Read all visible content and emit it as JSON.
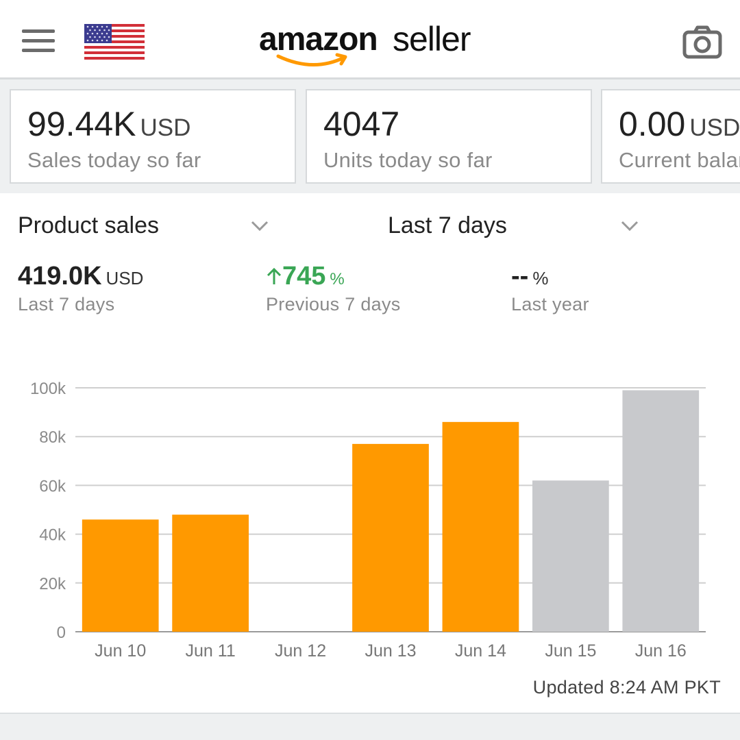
{
  "header": {
    "logo_word1": "amazon",
    "logo_word2": "seller",
    "icons": {
      "menu": "hamburger-menu-icon",
      "flag": "us-flag-icon",
      "camera": "camera-icon"
    }
  },
  "stats": [
    {
      "value": "99.44K",
      "unit": "USD",
      "label": "Sales today so far"
    },
    {
      "value": "4047",
      "unit": "",
      "label": "Units today so far"
    },
    {
      "value": "0.00",
      "unit": "USD",
      "label": "Current balance"
    }
  ],
  "filters": {
    "metric_select": "Product sales",
    "period_select": "Last 7 days"
  },
  "summary": [
    {
      "value": "419.0K",
      "unit": "USD",
      "label": "Last 7 days"
    },
    {
      "value": "745",
      "unit": "%",
      "label": "Previous 7 days",
      "trend": "up"
    },
    {
      "value": "--",
      "unit": "%",
      "label": "Last year"
    }
  ],
  "chart_data": {
    "type": "bar",
    "categories": [
      "Jun 10",
      "Jun 11",
      "Jun 12",
      "Jun 13",
      "Jun 14",
      "Jun 15",
      "Jun 16"
    ],
    "values": [
      46000,
      48000,
      0,
      77000,
      86000,
      62000,
      99000
    ],
    "bar_colors": [
      "#ff9900",
      "#ff9900",
      "#ff9900",
      "#ff9900",
      "#ff9900",
      "#c8c9cc",
      "#c8c9cc"
    ],
    "ylim": [
      0,
      100000
    ],
    "yticks": [
      0,
      20000,
      40000,
      60000,
      80000,
      100000
    ],
    "ytick_labels": [
      "0",
      "20k",
      "40k",
      "60k",
      "80k",
      "100k"
    ],
    "grid": true
  },
  "updated": "Updated 8:24 AM PKT",
  "colors": {
    "accent": "#ff9900",
    "positive": "#3aa655",
    "muted_bar": "#c8c9cc"
  }
}
